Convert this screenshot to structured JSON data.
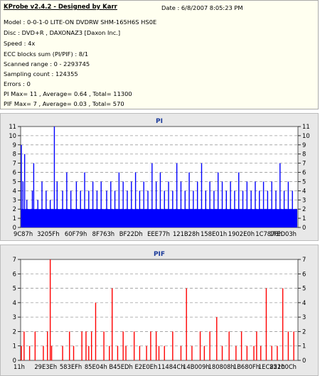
{
  "info": {
    "title": "KProbe v2.4.2 - Designed by Karr",
    "date_line": "Date : 6/8/2007 8:05:23 PM",
    "lines": [
      "Model : 0-0-1-0 LITE-ON DVDRW SHM-165H6S HS0E",
      "Disc : DVD+R , DAXONAZ3 [Daxon Inc.]",
      "Speed : 4x",
      "ECC blocks sum (PI/PIF) : 8/1",
      "Scanned range : 0 - 2293745",
      "Sampling count : 124355",
      "Errors : 0",
      "PI Max= 11 , Average= 0.64 , Total= 11300",
      "PIF Max= 7 , Average= 0.03 , Total= 570"
    ]
  },
  "colors": {
    "pi": "#0000ff",
    "pif": "#ff0000",
    "grid": "#9a9a9a",
    "plot_bg": "#ffffff",
    "title": "#1a3a9a"
  },
  "chart_data": [
    {
      "type": "bar",
      "title": "PI",
      "ylim": [
        0,
        11
      ],
      "yticks": [
        "0",
        "1",
        "2",
        "3",
        "4",
        "5",
        "6",
        "7",
        "8",
        "9",
        "10",
        "11"
      ],
      "xticks": [
        "9C87h",
        "3205Fh",
        "60F79h",
        "8F763h",
        "BF22Dh",
        "EEE77h",
        "121B28h",
        "158E01h",
        "1902E0h",
        "1C7878h",
        "1FED03h"
      ],
      "x_range": [
        0,
        2293745
      ],
      "baseline": 2,
      "spikes": [
        {
          "x": 0.0,
          "y": 9
        },
        {
          "x": 0.006,
          "y": 5
        },
        {
          "x": 0.012,
          "y": 8
        },
        {
          "x": 0.02,
          "y": 3
        },
        {
          "x": 0.04,
          "y": 4
        },
        {
          "x": 0.045,
          "y": 7
        },
        {
          "x": 0.06,
          "y": 3
        },
        {
          "x": 0.075,
          "y": 5
        },
        {
          "x": 0.09,
          "y": 4
        },
        {
          "x": 0.105,
          "y": 3
        },
        {
          "x": 0.12,
          "y": 11
        },
        {
          "x": 0.13,
          "y": 5
        },
        {
          "x": 0.15,
          "y": 4
        },
        {
          "x": 0.165,
          "y": 6
        },
        {
          "x": 0.18,
          "y": 4
        },
        {
          "x": 0.2,
          "y": 5
        },
        {
          "x": 0.215,
          "y": 4
        },
        {
          "x": 0.23,
          "y": 6
        },
        {
          "x": 0.245,
          "y": 4
        },
        {
          "x": 0.26,
          "y": 5
        },
        {
          "x": 0.275,
          "y": 4
        },
        {
          "x": 0.29,
          "y": 5
        },
        {
          "x": 0.31,
          "y": 4
        },
        {
          "x": 0.325,
          "y": 5
        },
        {
          "x": 0.34,
          "y": 4
        },
        {
          "x": 0.355,
          "y": 6
        },
        {
          "x": 0.37,
          "y": 5
        },
        {
          "x": 0.385,
          "y": 4
        },
        {
          "x": 0.4,
          "y": 5
        },
        {
          "x": 0.415,
          "y": 6
        },
        {
          "x": 0.43,
          "y": 4
        },
        {
          "x": 0.445,
          "y": 5
        },
        {
          "x": 0.46,
          "y": 4
        },
        {
          "x": 0.475,
          "y": 7
        },
        {
          "x": 0.49,
          "y": 5
        },
        {
          "x": 0.505,
          "y": 6
        },
        {
          "x": 0.52,
          "y": 4
        },
        {
          "x": 0.535,
          "y": 5
        },
        {
          "x": 0.55,
          "y": 4
        },
        {
          "x": 0.565,
          "y": 7
        },
        {
          "x": 0.58,
          "y": 5
        },
        {
          "x": 0.595,
          "y": 4
        },
        {
          "x": 0.61,
          "y": 6
        },
        {
          "x": 0.625,
          "y": 4
        },
        {
          "x": 0.64,
          "y": 5
        },
        {
          "x": 0.655,
          "y": 7
        },
        {
          "x": 0.67,
          "y": 4
        },
        {
          "x": 0.685,
          "y": 5
        },
        {
          "x": 0.7,
          "y": 4
        },
        {
          "x": 0.715,
          "y": 6
        },
        {
          "x": 0.73,
          "y": 5
        },
        {
          "x": 0.745,
          "y": 4
        },
        {
          "x": 0.76,
          "y": 5
        },
        {
          "x": 0.775,
          "y": 4
        },
        {
          "x": 0.79,
          "y": 6
        },
        {
          "x": 0.805,
          "y": 4
        },
        {
          "x": 0.82,
          "y": 5
        },
        {
          "x": 0.835,
          "y": 4
        },
        {
          "x": 0.85,
          "y": 5
        },
        {
          "x": 0.865,
          "y": 4
        },
        {
          "x": 0.88,
          "y": 5
        },
        {
          "x": 0.895,
          "y": 4
        },
        {
          "x": 0.91,
          "y": 5
        },
        {
          "x": 0.925,
          "y": 4
        },
        {
          "x": 0.94,
          "y": 7
        },
        {
          "x": 0.955,
          "y": 4
        },
        {
          "x": 0.97,
          "y": 5
        },
        {
          "x": 0.985,
          "y": 4
        }
      ]
    },
    {
      "type": "bar",
      "title": "PIF",
      "ylim": [
        0,
        7
      ],
      "yticks": [
        "0",
        "1",
        "2",
        "3",
        "4",
        "5",
        "6",
        "7"
      ],
      "xticks": [
        "11h",
        "29E3Eh",
        "583EFh",
        "85E04h",
        "B45EDh",
        "E2E0Eh",
        "11484Ch",
        "14B009h",
        "180808h",
        "1B680Fh",
        "1EC851h",
        "22200Ch"
      ],
      "x_range": [
        0,
        2293745
      ],
      "spikes": [
        {
          "x": 0.0,
          "y": 1
        },
        {
          "x": 0.01,
          "y": 2
        },
        {
          "x": 0.03,
          "y": 1
        },
        {
          "x": 0.05,
          "y": 2
        },
        {
          "x": 0.08,
          "y": 1
        },
        {
          "x": 0.095,
          "y": 2
        },
        {
          "x": 0.105,
          "y": 7
        },
        {
          "x": 0.11,
          "y": 1
        },
        {
          "x": 0.15,
          "y": 1
        },
        {
          "x": 0.175,
          "y": 2
        },
        {
          "x": 0.19,
          "y": 1
        },
        {
          "x": 0.22,
          "y": 2
        },
        {
          "x": 0.235,
          "y": 2
        },
        {
          "x": 0.245,
          "y": 1
        },
        {
          "x": 0.255,
          "y": 2
        },
        {
          "x": 0.27,
          "y": 4
        },
        {
          "x": 0.3,
          "y": 2
        },
        {
          "x": 0.32,
          "y": 1
        },
        {
          "x": 0.33,
          "y": 5
        },
        {
          "x": 0.35,
          "y": 1
        },
        {
          "x": 0.37,
          "y": 2
        },
        {
          "x": 0.38,
          "y": 1
        },
        {
          "x": 0.41,
          "y": 2
        },
        {
          "x": 0.43,
          "y": 1
        },
        {
          "x": 0.455,
          "y": 1
        },
        {
          "x": 0.47,
          "y": 2
        },
        {
          "x": 0.49,
          "y": 2
        },
        {
          "x": 0.5,
          "y": 1
        },
        {
          "x": 0.52,
          "y": 1
        },
        {
          "x": 0.55,
          "y": 2
        },
        {
          "x": 0.58,
          "y": 1
        },
        {
          "x": 0.6,
          "y": 5
        },
        {
          "x": 0.62,
          "y": 1
        },
        {
          "x": 0.65,
          "y": 2
        },
        {
          "x": 0.665,
          "y": 1
        },
        {
          "x": 0.685,
          "y": 2
        },
        {
          "x": 0.71,
          "y": 3
        },
        {
          "x": 0.73,
          "y": 1
        },
        {
          "x": 0.755,
          "y": 2
        },
        {
          "x": 0.78,
          "y": 1
        },
        {
          "x": 0.8,
          "y": 2
        },
        {
          "x": 0.82,
          "y": 1
        },
        {
          "x": 0.845,
          "y": 1
        },
        {
          "x": 0.855,
          "y": 2
        },
        {
          "x": 0.87,
          "y": 1
        },
        {
          "x": 0.89,
          "y": 5
        },
        {
          "x": 0.91,
          "y": 1
        },
        {
          "x": 0.93,
          "y": 1
        },
        {
          "x": 0.95,
          "y": 5
        },
        {
          "x": 0.97,
          "y": 2
        },
        {
          "x": 0.99,
          "y": 2
        }
      ]
    }
  ]
}
